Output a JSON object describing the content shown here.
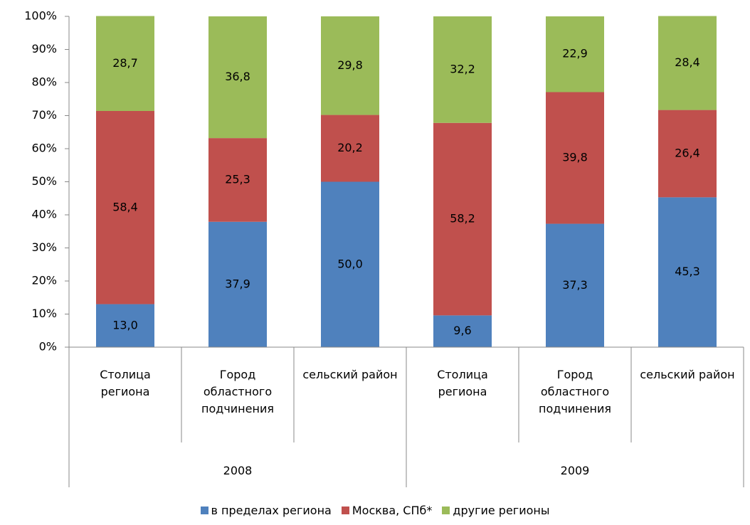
{
  "chart_data": {
    "type": "stacked_bar",
    "categories": [
      "Столица региона",
      "Город областного подчинения",
      "сельский район",
      "Столица региона",
      "Город областного подчинения",
      "сельский район"
    ],
    "groups": [
      "2008",
      "2009"
    ],
    "series": [
      {
        "name": "в пределах региона",
        "color": "#4f81bd",
        "values": [
          13.0,
          37.9,
          50.0,
          9.6,
          37.3,
          45.3
        ],
        "value_labels": [
          "13,0",
          "37,9",
          "50,0",
          "9,6",
          "37,3",
          "45,3"
        ]
      },
      {
        "name": "Москва, СПб*",
        "color": "#c0504d",
        "values": [
          58.4,
          25.3,
          20.2,
          58.2,
          39.8,
          26.4
        ],
        "value_labels": [
          "58,4",
          "25,3",
          "20,2",
          "58,2",
          "39,8",
          "26,4"
        ]
      },
      {
        "name": "другие регионы",
        "color": "#9bbb59",
        "values": [
          28.7,
          36.8,
          29.8,
          32.2,
          22.9,
          28.4
        ],
        "value_labels": [
          "28,7",
          "36,8",
          "29,8",
          "32,2",
          "22,9",
          "28,4"
        ]
      }
    ],
    "ylim": [
      0,
      100
    ],
    "yticks": [
      {
        "value": 0,
        "label": "0%"
      },
      {
        "value": 10,
        "label": "10%"
      },
      {
        "value": 20,
        "label": "20%"
      },
      {
        "value": 30,
        "label": "30%"
      },
      {
        "value": 40,
        "label": "40%"
      },
      {
        "value": 50,
        "label": "50%"
      },
      {
        "value": 60,
        "label": "60%"
      },
      {
        "value": 70,
        "label": "70%"
      },
      {
        "value": 80,
        "label": "80%"
      },
      {
        "value": 90,
        "label": "90%"
      },
      {
        "value": 100,
        "label": "100%"
      }
    ],
    "legend": "bottom"
  }
}
